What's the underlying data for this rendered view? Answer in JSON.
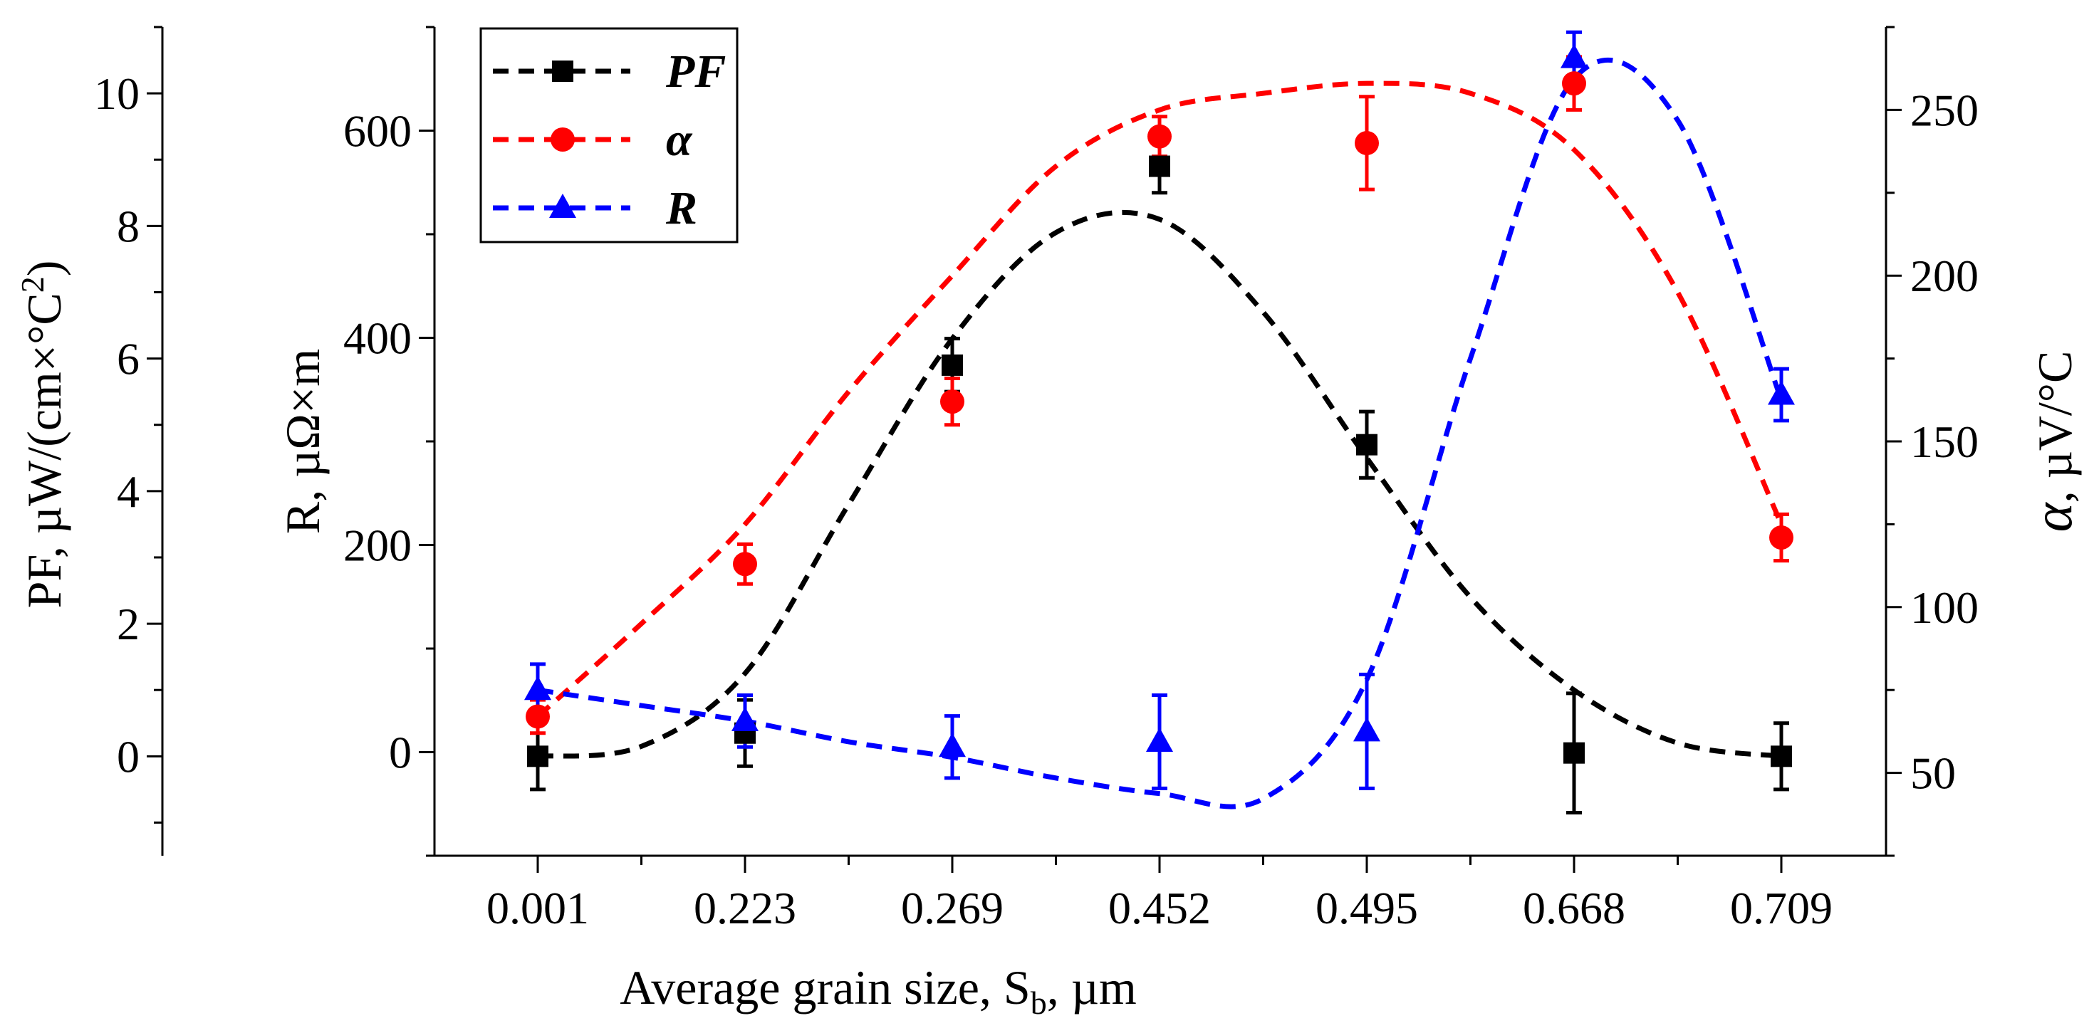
{
  "chart_data": {
    "type": "line",
    "xlabel": "Average grain size, S",
    "xlabel_sub": "b",
    "xlabel_unit": ", µm",
    "categories": [
      "0.001",
      "0.223",
      "0.269",
      "0.452",
      "0.495",
      "0.668",
      "0.709"
    ],
    "axes": {
      "pf": {
        "label_main": "PF, µW/(cm×°C",
        "label_sup": "2",
        "label_end": ")",
        "ticks": [
          "0",
          "2",
          "4",
          "6",
          "8",
          "10"
        ],
        "ylim": [
          -1.5,
          11
        ]
      },
      "r": {
        "label": "R, µΩ×m",
        "ticks": [
          "0",
          "200",
          "400",
          "600"
        ],
        "ylim": [
          -100,
          700
        ]
      },
      "alpha": {
        "label_sym": "α",
        "label_rest": ", µV/°C",
        "ticks": [
          "50",
          "100",
          "150",
          "200",
          "250"
        ],
        "ylim": [
          25,
          275
        ]
      }
    },
    "series": [
      {
        "name": "PF",
        "axis": "pf",
        "color": "#000000",
        "marker": "square",
        "values": [
          0.0,
          0.35,
          5.9,
          8.9,
          4.7,
          0.05,
          0.0
        ],
        "errors": [
          0.5,
          0.5,
          0.4,
          0.4,
          0.5,
          0.9,
          0.5
        ],
        "fit": [
          [
            0.0,
            0.0
          ],
          [
            0.5,
            0.15
          ],
          [
            1.0,
            1.25
          ],
          [
            1.5,
            3.8
          ],
          [
            2.0,
            6.3
          ],
          [
            2.5,
            7.9
          ],
          [
            3.0,
            8.1
          ],
          [
            3.5,
            6.7
          ],
          [
            4.0,
            4.5
          ],
          [
            4.5,
            2.4
          ],
          [
            5.0,
            1.0
          ],
          [
            5.5,
            0.2
          ],
          [
            6.0,
            0.0
          ]
        ]
      },
      {
        "name": "α",
        "axis": "alpha",
        "color": "#ff0000",
        "marker": "circle",
        "values": [
          67,
          113,
          162,
          242,
          240,
          258,
          121
        ],
        "errors": [
          5,
          6,
          7,
          6,
          14,
          8,
          7
        ],
        "fit": [
          [
            0.0,
            67
          ],
          [
            0.5,
            95
          ],
          [
            1.0,
            125
          ],
          [
            1.5,
            165
          ],
          [
            2.0,
            200
          ],
          [
            2.5,
            233
          ],
          [
            3.0,
            250
          ],
          [
            3.5,
            255
          ],
          [
            4.0,
            258
          ],
          [
            4.5,
            255
          ],
          [
            5.0,
            238
          ],
          [
            5.5,
            195
          ],
          [
            6.0,
            125
          ]
        ]
      },
      {
        "name": "R",
        "axis": "r",
        "color": "#0000ff",
        "marker": "triangle",
        "values": [
          60,
          30,
          5,
          10,
          20,
          670,
          345
        ],
        "errors": [
          25,
          25,
          30,
          45,
          55,
          25,
          25
        ],
        "fit": [
          [
            0.0,
            60
          ],
          [
            0.5,
            45
          ],
          [
            1.0,
            30
          ],
          [
            1.5,
            10
          ],
          [
            2.0,
            -5
          ],
          [
            2.5,
            -25
          ],
          [
            3.0,
            -40
          ],
          [
            3.5,
            -45
          ],
          [
            4.0,
            70
          ],
          [
            4.5,
            380
          ],
          [
            5.0,
            650
          ],
          [
            5.5,
            610
          ],
          [
            6.0,
            340
          ]
        ]
      }
    ],
    "legend": {
      "placement": "top-left",
      "entries": [
        {
          "label": "PF",
          "color": "#000000",
          "marker": "square"
        },
        {
          "label": "α",
          "color": "#ff0000",
          "marker": "circle"
        },
        {
          "label": "R",
          "color": "#0000ff",
          "marker": "triangle"
        }
      ]
    }
  }
}
